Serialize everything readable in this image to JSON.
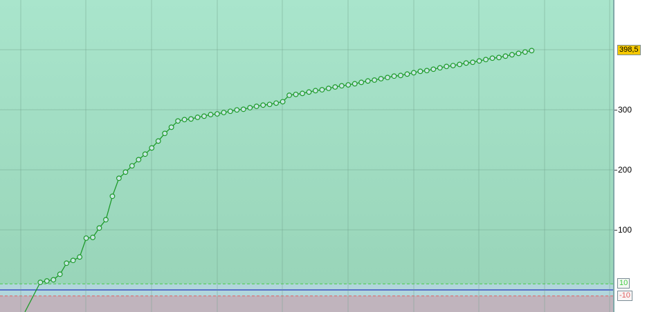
{
  "chart_data": {
    "type": "line",
    "title": "",
    "xlabel": "",
    "ylabel": "",
    "ylim": [
      -37,
      482
    ],
    "grid": true,
    "y_ticks": [
      "100",
      "200",
      "300"
    ],
    "last_value_label": "398,5",
    "levels": [
      {
        "label": "10",
        "value": 10,
        "color": "#44cc44"
      },
      {
        "label": "-10",
        "value": -10,
        "color": "#e06060"
      }
    ],
    "zero_line_color": "#2233bb",
    "series_color": "#1e9a2a",
    "last_label_color": "#f5c800",
    "values": [
      12.6,
      14.9,
      16.9,
      26.1,
      44.5,
      49.1,
      54.8,
      86.2,
      87.4,
      103.1,
      116.9,
      156.0,
      185.9,
      196.2,
      206.6,
      216.9,
      226.1,
      236.4,
      247.9,
      260.6,
      270.9,
      281.3,
      283.6,
      284.7,
      287.4,
      289.3,
      292.0,
      293.1,
      295.4,
      297.4,
      299.7,
      300.8,
      303.4,
      305.7,
      307.7,
      308.9,
      311.1,
      313.4,
      324.1,
      325.6,
      327.2,
      329.5,
      331.8,
      333.3,
      335.6,
      337.9,
      339.9,
      341.4,
      343.3,
      345.6,
      347.9,
      349.4,
      351.7,
      353.7,
      356.0,
      357.1,
      359.4,
      361.7,
      364.0,
      365.2,
      367.5,
      369.8,
      372.1,
      373.6,
      375.5,
      377.8,
      379.0,
      381.3,
      383.6,
      385.9,
      387.0,
      389.3,
      391.6,
      393.9,
      396.2,
      398.5
    ]
  }
}
